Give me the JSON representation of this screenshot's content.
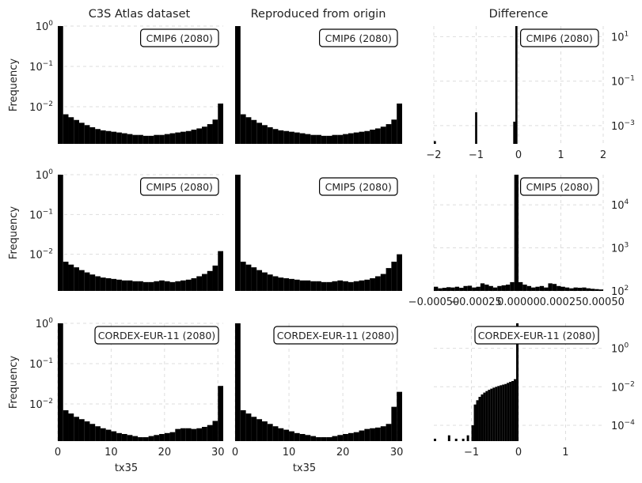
{
  "figure": {
    "column_titles": [
      "C3S Atlas dataset",
      "Reproduced from origin",
      "Difference"
    ],
    "y_label": "Frequency",
    "x_label": "tx35"
  },
  "chart_data": [
    {
      "id": "c3s-cmip6",
      "type": "bar",
      "row": 0,
      "col": 0,
      "label": "CMIP6 (2080)",
      "x_scale": "linear",
      "y_scale": "log",
      "xlim": [
        0,
        31
      ],
      "ylim": [
        0.0012,
        1.0
      ],
      "bin_width": 1,
      "bin_start": [
        0,
        1,
        2,
        3,
        4,
        5,
        6,
        7,
        8,
        9,
        10,
        11,
        12,
        13,
        14,
        15,
        16,
        17,
        18,
        19,
        20,
        21,
        22,
        23,
        24,
        25,
        26,
        27,
        28,
        29,
        30
      ],
      "values": [
        1.0,
        0.0065,
        0.0055,
        0.0047,
        0.004,
        0.0035,
        0.0031,
        0.0028,
        0.0026,
        0.0025,
        0.0024,
        0.0023,
        0.0022,
        0.0021,
        0.002,
        0.002,
        0.0019,
        0.0019,
        0.002,
        0.002,
        0.0021,
        0.0022,
        0.0023,
        0.0024,
        0.0025,
        0.0027,
        0.0029,
        0.0032,
        0.0037,
        0.0048,
        0.012
      ],
      "y_ticks": [
        {
          "v": 1,
          "base": "10",
          "exp": "0"
        },
        {
          "v": 0.1,
          "base": "10",
          "exp": "−1"
        },
        {
          "v": 0.01,
          "base": "10",
          "exp": "−2"
        }
      ],
      "x_ticks": [],
      "x_label": "",
      "show_y_label": true,
      "grid": true
    },
    {
      "id": "repro-cmip6",
      "type": "bar",
      "row": 0,
      "col": 1,
      "label": "CMIP6 (2080)",
      "x_scale": "linear",
      "y_scale": "log",
      "xlim": [
        0,
        31
      ],
      "ylim": [
        0.0012,
        1.0
      ],
      "bin_width": 1,
      "bin_start": [
        0,
        1,
        2,
        3,
        4,
        5,
        6,
        7,
        8,
        9,
        10,
        11,
        12,
        13,
        14,
        15,
        16,
        17,
        18,
        19,
        20,
        21,
        22,
        23,
        24,
        25,
        26,
        27,
        28,
        29,
        30
      ],
      "values": [
        1.0,
        0.0065,
        0.0055,
        0.0047,
        0.004,
        0.0035,
        0.0031,
        0.0028,
        0.0026,
        0.0025,
        0.0024,
        0.0023,
        0.0022,
        0.0021,
        0.002,
        0.002,
        0.0019,
        0.0019,
        0.002,
        0.002,
        0.0021,
        0.0022,
        0.0023,
        0.0024,
        0.0025,
        0.0027,
        0.0029,
        0.0032,
        0.0037,
        0.0048,
        0.012
      ],
      "y_ticks": [],
      "x_ticks": [],
      "x_label": "",
      "show_y_label": false,
      "grid": true
    },
    {
      "id": "diff-cmip6",
      "type": "bar",
      "row": 0,
      "col": 2,
      "label": "CMIP6 (2080)",
      "x_scale": "linear",
      "y_scale": "log",
      "xlim": [
        -2,
        2
      ],
      "ylim": [
        0.00015,
        30
      ],
      "bin_width": 0.05,
      "bin_start": [
        -2.0,
        -1.025,
        -0.125,
        -0.075
      ],
      "values": [
        0.0002,
        0.004,
        0.0015,
        30
      ],
      "y_ticks": [
        {
          "v": 10,
          "base": "10",
          "exp": "1"
        },
        {
          "v": 0.1,
          "base": "10",
          "exp": "−1"
        },
        {
          "v": 0.001,
          "base": "10",
          "exp": "−3"
        }
      ],
      "x_ticks": [
        {
          "v": -2,
          "text": "−2"
        },
        {
          "v": -1,
          "text": "−1"
        },
        {
          "v": 0,
          "text": "0"
        },
        {
          "v": 1,
          "text": "1"
        },
        {
          "v": 2,
          "text": "2"
        }
      ],
      "x_label": "",
      "show_y_label": false,
      "grid": true
    },
    {
      "id": "c3s-cmip5",
      "type": "bar",
      "row": 1,
      "col": 0,
      "label": "CMIP5 (2080)",
      "x_scale": "linear",
      "y_scale": "log",
      "xlim": [
        0,
        31
      ],
      "ylim": [
        0.0012,
        1.0
      ],
      "bin_width": 1,
      "bin_start": [
        0,
        1,
        2,
        3,
        4,
        5,
        6,
        7,
        8,
        9,
        10,
        11,
        12,
        13,
        14,
        15,
        16,
        17,
        18,
        19,
        20,
        21,
        22,
        23,
        24,
        25,
        26,
        27,
        28,
        29,
        30
      ],
      "values": [
        1.0,
        0.0065,
        0.0055,
        0.0047,
        0.004,
        0.0035,
        0.0031,
        0.0028,
        0.0026,
        0.0025,
        0.0024,
        0.0023,
        0.0022,
        0.0022,
        0.0021,
        0.0021,
        0.002,
        0.002,
        0.0021,
        0.0022,
        0.0021,
        0.002,
        0.0021,
        0.0022,
        0.0023,
        0.0025,
        0.0028,
        0.0032,
        0.0038,
        0.0052,
        0.012
      ],
      "y_ticks": [
        {
          "v": 1,
          "base": "10",
          "exp": "0"
        },
        {
          "v": 0.1,
          "base": "10",
          "exp": "−1"
        },
        {
          "v": 0.01,
          "base": "10",
          "exp": "−2"
        }
      ],
      "x_ticks": [],
      "x_label": "",
      "show_y_label": true,
      "grid": true
    },
    {
      "id": "repro-cmip5",
      "type": "bar",
      "row": 1,
      "col": 1,
      "label": "CMIP5 (2080)",
      "x_scale": "linear",
      "y_scale": "log",
      "xlim": [
        0,
        31
      ],
      "ylim": [
        0.0012,
        1.0
      ],
      "bin_width": 1,
      "bin_start": [
        0,
        1,
        2,
        3,
        4,
        5,
        6,
        7,
        8,
        9,
        10,
        11,
        12,
        13,
        14,
        15,
        16,
        17,
        18,
        19,
        20,
        21,
        22,
        23,
        24,
        25,
        26,
        27,
        28,
        29,
        30
      ],
      "values": [
        1.0,
        0.0065,
        0.0055,
        0.0047,
        0.004,
        0.0035,
        0.0031,
        0.0028,
        0.0026,
        0.0025,
        0.0024,
        0.0023,
        0.0022,
        0.0022,
        0.0021,
        0.0021,
        0.002,
        0.002,
        0.0021,
        0.0022,
        0.0021,
        0.002,
        0.0021,
        0.0022,
        0.0023,
        0.0025,
        0.0028,
        0.0032,
        0.0045,
        0.0065,
        0.01
      ],
      "y_ticks": [],
      "x_ticks": [],
      "x_label": "",
      "show_y_label": false,
      "grid": true
    },
    {
      "id": "diff-cmip5",
      "type": "bar",
      "row": 1,
      "col": 2,
      "label": "CMIP5 (2080)",
      "x_scale": "linear",
      "y_scale": "log",
      "xlim": [
        -0.0005,
        0.0005
      ],
      "ylim": [
        100,
        50000
      ],
      "bin_width": 2.5e-05,
      "bin_start": [
        -0.0005,
        -0.000475,
        -0.00045,
        -0.000425,
        -0.0004,
        -0.000375,
        -0.00035,
        -0.000325,
        -0.0003,
        -0.000275,
        -0.00025,
        -0.000225,
        -0.0002,
        -0.000175,
        -0.00015,
        -0.000125,
        -0.0001,
        -7.5e-05,
        -5e-05,
        -2.5e-05,
        0.0,
        2.5e-05,
        5e-05,
        7.5e-05,
        0.0001,
        0.000125,
        0.00015,
        0.000175,
        0.0002,
        0.000225,
        0.00025,
        0.000275,
        0.0003,
        0.000325,
        0.00035,
        0.000375,
        0.0004,
        0.000425,
        0.00045,
        0.000475
      ],
      "values": [
        125,
        115,
        118,
        122,
        120,
        125,
        118,
        130,
        132,
        120,
        125,
        150,
        140,
        130,
        120,
        130,
        135,
        140,
        160,
        50000,
        160,
        140,
        130,
        120,
        125,
        130,
        120,
        150,
        145,
        130,
        125,
        120,
        115,
        120,
        118,
        120,
        115,
        112,
        110,
        108
      ],
      "y_ticks": [
        {
          "v": 10000,
          "base": "10",
          "exp": "4"
        },
        {
          "v": 1000,
          "base": "10",
          "exp": "3"
        },
        {
          "v": 100,
          "base": "10",
          "exp": "2"
        }
      ],
      "x_ticks": [
        {
          "v": -0.0005,
          "text": "−0.00050"
        },
        {
          "v": -0.00025,
          "text": "−0.00025"
        },
        {
          "v": 0,
          "text": "0.00000"
        },
        {
          "v": 0.00025,
          "text": "0.00025"
        },
        {
          "v": 0.0005,
          "text": "0.00050"
        }
      ],
      "x_label": "",
      "show_y_label": false,
      "grid": true
    },
    {
      "id": "c3s-cordex",
      "type": "bar",
      "row": 2,
      "col": 0,
      "label": "CORDEX-EUR-11 (2080)",
      "x_scale": "linear",
      "y_scale": "log",
      "xlim": [
        0,
        31
      ],
      "ylim": [
        0.0012,
        1.0
      ],
      "bin_width": 1,
      "bin_start": [
        0,
        1,
        2,
        3,
        4,
        5,
        6,
        7,
        8,
        9,
        10,
        11,
        12,
        13,
        14,
        15,
        16,
        17,
        18,
        19,
        20,
        21,
        22,
        23,
        24,
        25,
        26,
        27,
        28,
        29,
        30
      ],
      "values": [
        1.0,
        0.007,
        0.0058,
        0.0048,
        0.0042,
        0.0037,
        0.0032,
        0.0028,
        0.0025,
        0.0023,
        0.0021,
        0.0019,
        0.0018,
        0.0017,
        0.0016,
        0.0015,
        0.0015,
        0.0016,
        0.0017,
        0.0018,
        0.0019,
        0.002,
        0.0024,
        0.0025,
        0.0025,
        0.0024,
        0.0025,
        0.0027,
        0.003,
        0.0038,
        0.028
      ],
      "y_ticks": [
        {
          "v": 1,
          "base": "10",
          "exp": "0"
        },
        {
          "v": 0.1,
          "base": "10",
          "exp": "−1"
        },
        {
          "v": 0.01,
          "base": "10",
          "exp": "−2"
        }
      ],
      "x_ticks": [
        {
          "v": 0,
          "text": "0"
        },
        {
          "v": 10,
          "text": "10"
        },
        {
          "v": 20,
          "text": "20"
        },
        {
          "v": 30,
          "text": "30"
        }
      ],
      "x_label": "tx35",
      "show_y_label": true,
      "grid": true
    },
    {
      "id": "repro-cordex",
      "type": "bar",
      "row": 2,
      "col": 1,
      "label": "CORDEX-EUR-11 (2080)",
      "x_scale": "linear",
      "y_scale": "log",
      "xlim": [
        0,
        31
      ],
      "ylim": [
        0.0012,
        1.0
      ],
      "bin_width": 1,
      "bin_start": [
        0,
        1,
        2,
        3,
        4,
        5,
        6,
        7,
        8,
        9,
        10,
        11,
        12,
        13,
        14,
        15,
        16,
        17,
        18,
        19,
        20,
        21,
        22,
        23,
        24,
        25,
        26,
        27,
        28,
        29,
        30
      ],
      "values": [
        1.0,
        0.007,
        0.0058,
        0.0048,
        0.0042,
        0.0037,
        0.0032,
        0.0028,
        0.0025,
        0.0023,
        0.0021,
        0.0019,
        0.0018,
        0.0017,
        0.0016,
        0.0015,
        0.0015,
        0.0015,
        0.0016,
        0.0017,
        0.0018,
        0.0019,
        0.002,
        0.0022,
        0.0024,
        0.0025,
        0.0026,
        0.0028,
        0.0032,
        0.0085,
        0.02
      ],
      "y_ticks": [],
      "x_ticks": [
        {
          "v": 0,
          "text": "0"
        },
        {
          "v": 10,
          "text": "10"
        },
        {
          "v": 20,
          "text": "20"
        },
        {
          "v": 30,
          "text": "30"
        }
      ],
      "x_label": "tx35",
      "show_y_label": false,
      "grid": true
    },
    {
      "id": "diff-cordex",
      "type": "bar",
      "row": 2,
      "col": 2,
      "label": "CORDEX-EUR-11 (2080)",
      "x_scale": "linear",
      "y_scale": "log",
      "xlim": [
        -1.8,
        1.8
      ],
      "ylim": [
        1.5e-05,
        20
      ],
      "bin_width": 0.05,
      "bin_start": [
        -1.8,
        -1.5,
        -1.35,
        -1.2,
        -1.1,
        -1.0,
        -0.95,
        -0.9,
        -0.85,
        -0.8,
        -0.75,
        -0.7,
        -0.65,
        -0.6,
        -0.55,
        -0.5,
        -0.45,
        -0.4,
        -0.35,
        -0.3,
        -0.25,
        -0.2,
        -0.15,
        -0.1,
        -0.05
      ],
      "values": [
        2e-05,
        3e-05,
        2e-05,
        2e-05,
        3e-05,
        0.0001,
        0.0012,
        0.002,
        0.003,
        0.004,
        0.005,
        0.006,
        0.007,
        0.008,
        0.009,
        0.01,
        0.011,
        0.012,
        0.013,
        0.014,
        0.016,
        0.018,
        0.02,
        0.025,
        20
      ],
      "y_ticks": [
        {
          "v": 1,
          "base": "10",
          "exp": "0"
        },
        {
          "v": 0.01,
          "base": "10",
          "exp": "−2"
        },
        {
          "v": 0.0001,
          "base": "10",
          "exp": "−4"
        }
      ],
      "x_ticks": [
        {
          "v": -1,
          "text": "−1"
        },
        {
          "v": 0,
          "text": "0"
        },
        {
          "v": 1,
          "text": "1"
        }
      ],
      "x_label": "",
      "show_y_label": false,
      "grid": true
    }
  ]
}
